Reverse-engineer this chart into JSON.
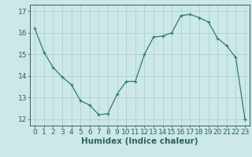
{
  "x": [
    0,
    1,
    2,
    3,
    4,
    5,
    6,
    7,
    8,
    9,
    10,
    11,
    12,
    13,
    14,
    15,
    16,
    17,
    18,
    19,
    20,
    21,
    22,
    23
  ],
  "y": [
    16.2,
    15.1,
    14.4,
    13.95,
    13.6,
    12.85,
    12.65,
    12.2,
    12.25,
    13.15,
    13.75,
    13.75,
    15.0,
    15.8,
    15.85,
    16.0,
    16.8,
    16.85,
    16.7,
    16.5,
    15.75,
    15.4,
    14.85,
    12.0
  ],
  "line_color": "#2e7d6e",
  "marker": "+",
  "bg_color": "#cce8e8",
  "grid_color": "#aacccc",
  "xlabel": "Humidex (Indice chaleur)",
  "ylabel_ticks": [
    12,
    13,
    14,
    15,
    16,
    17
  ],
  "xlim": [
    -0.5,
    23.5
  ],
  "ylim": [
    11.7,
    17.3
  ],
  "tick_label_color": "#2e6060",
  "axis_color": "#2e6060",
  "xlabel_color": "#2e6060",
  "font_size": 6.5,
  "xlabel_fontsize": 7.5
}
